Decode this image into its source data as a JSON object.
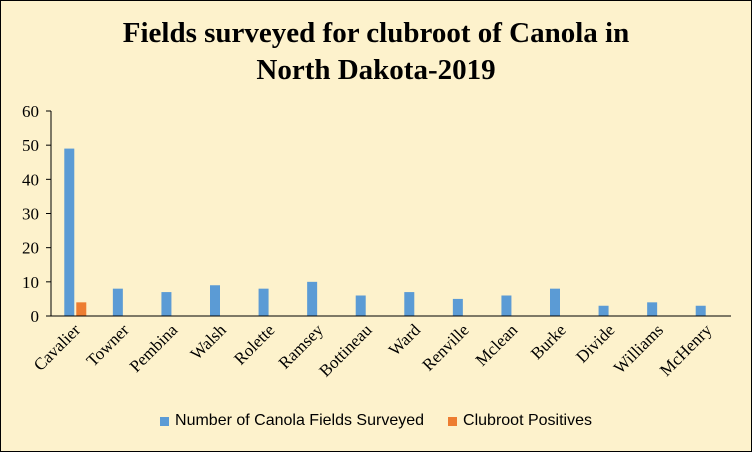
{
  "chart_data": {
    "type": "bar",
    "title": [
      "Fields surveyed  for clubroot of Canola in",
      "North Dakota-2019"
    ],
    "xlabel": "",
    "ylabel": "",
    "ylim": [
      0,
      60
    ],
    "yticks": [
      0,
      10,
      20,
      30,
      40,
      50,
      60
    ],
    "grid": false,
    "legend_position": "bottom",
    "categories": [
      "Cavalier",
      "Towner",
      "Pembina",
      "Walsh",
      "Rolette",
      "Ramsey",
      "Bottineau",
      "Ward",
      "Renville",
      "Mclean",
      "Burke",
      "Divide",
      "Williams",
      "McHenry"
    ],
    "series": [
      {
        "name": "Number of Canola Fields Surveyed",
        "color": "#5b9bd5",
        "values": [
          49,
          8,
          7,
          9,
          8,
          10,
          6,
          7,
          5,
          6,
          8,
          3,
          4,
          3
        ]
      },
      {
        "name": "Clubroot Positives",
        "color": "#ed7d31",
        "values": [
          4,
          0,
          0,
          0,
          0,
          0,
          0,
          0,
          0,
          0,
          0,
          0,
          0,
          0
        ]
      }
    ]
  },
  "colors": {
    "background": "#fdf2cc",
    "axis": "#000000",
    "text": "#000000"
  }
}
